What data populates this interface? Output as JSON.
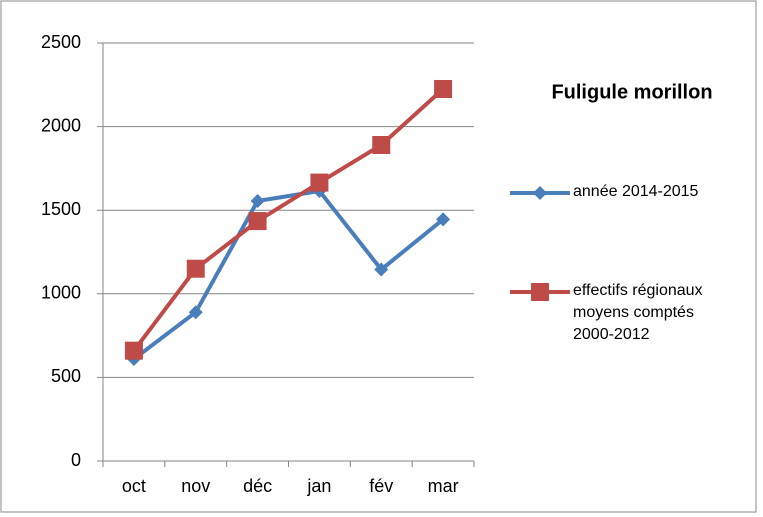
{
  "chart_data": {
    "type": "line",
    "title": "Fuligule morillon",
    "categories": [
      "oct",
      "nov",
      "déc",
      "jan",
      "fév",
      "mar"
    ],
    "series": [
      {
        "name": "année 2014-2015",
        "color": "#4a7ebb",
        "marker": "diamond",
        "values": [
          610,
          890,
          1555,
          1615,
          1145,
          1445
        ]
      },
      {
        "name": "effectifs régionaux moyens comptés 2000-2012",
        "color": "#be4b48",
        "marker": "square",
        "values": [
          660,
          1150,
          1435,
          1665,
          1890,
          2225
        ]
      }
    ],
    "ylim": [
      0,
      2500
    ],
    "yticks": [
      0,
      500,
      1000,
      1500,
      2000,
      2500
    ],
    "grid": true,
    "legend": "right"
  }
}
